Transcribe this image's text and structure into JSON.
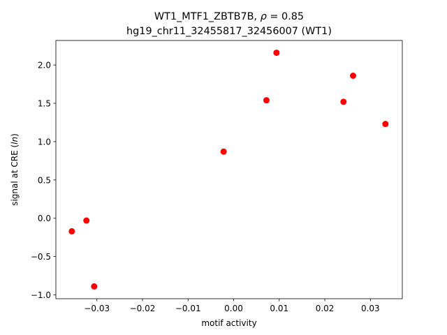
{
  "chart_data": {
    "type": "scatter",
    "title_line1": "WT1_MTF1_ZBTB7B, ",
    "title_rho_symbol": "ρ",
    "title_rho_value": " = 0.85",
    "title_line2": "hg19_chr11_32455817_32456007 (WT1)",
    "xlabel": "motif activity",
    "ylabel_prefix": "signal at CRE (",
    "ylabel_italic": "ln",
    "ylabel_suffix": ")",
    "xlim": [
      -0.039,
      0.037
    ],
    "ylim": [
      -1.05,
      2.32
    ],
    "xticks": [
      -0.03,
      -0.02,
      -0.01,
      0.0,
      0.01,
      0.02,
      0.03
    ],
    "xtick_labels": [
      "−0.03",
      "−0.02",
      "−0.01",
      "0.00",
      "0.01",
      "0.02",
      "0.03"
    ],
    "yticks": [
      -1.0,
      -0.5,
      0.0,
      0.5,
      1.0,
      1.5,
      2.0
    ],
    "ytick_labels": [
      "−1.0",
      "−0.5",
      "0.0",
      "0.5",
      "1.0",
      "1.5",
      "2.0"
    ],
    "grid": false,
    "marker_color": "#ff0000",
    "points": [
      {
        "x": -0.0355,
        "y": -0.17
      },
      {
        "x": -0.0323,
        "y": -0.03
      },
      {
        "x": -0.0306,
        "y": -0.89
      },
      {
        "x": -0.0022,
        "y": 0.87
      },
      {
        "x": 0.0072,
        "y": 1.54
      },
      {
        "x": 0.0094,
        "y": 2.16
      },
      {
        "x": 0.0241,
        "y": 1.52
      },
      {
        "x": 0.0262,
        "y": 1.86
      },
      {
        "x": 0.0333,
        "y": 1.23
      }
    ]
  }
}
